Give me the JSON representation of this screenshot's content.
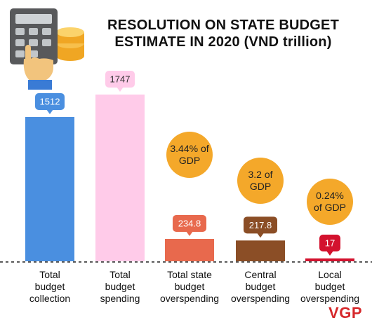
{
  "title_lines": [
    "RESOLUTION ON STATE BUDGET",
    "ESTIMATE IN 2020 (VND trillion)"
  ],
  "brand": "VGP",
  "colors": {
    "collection": "#4a8fe0",
    "spending": "#ffcbe9",
    "state_overspending": "#e8694d",
    "central_overspending": "#8b4e26",
    "local_overspending": "#d3122e",
    "gdp_note": "#f4a82a"
  },
  "icons": [
    "calculator-icon",
    "coins-icon",
    "pointing-hand-icon"
  ],
  "chart_data": {
    "type": "bar",
    "title": "RESOLUTION ON STATE BUDGET ESTIMATE IN 2020 (VND trillion)",
    "categories": [
      [
        "Total",
        "budget",
        "collection"
      ],
      [
        "Total",
        "budget",
        "spending"
      ],
      [
        "Total state",
        "budget",
        "overspending"
      ],
      [
        "Central",
        "budget",
        "overspending"
      ],
      [
        "Local",
        "budget",
        "overspending"
      ]
    ],
    "values": [
      1512,
      1747,
      234.8,
      217.8,
      17
    ],
    "value_labels": [
      "1512",
      "1747",
      "234.8",
      "217.8",
      "17"
    ],
    "gdp_notes": [
      null,
      null,
      [
        "3.44% of",
        "GDP"
      ],
      [
        "3.2 of",
        "GDP"
      ],
      [
        "0.24%",
        "of GDP"
      ]
    ],
    "ylim": [
      0,
      1747
    ],
    "grid": false,
    "legend": "none"
  }
}
